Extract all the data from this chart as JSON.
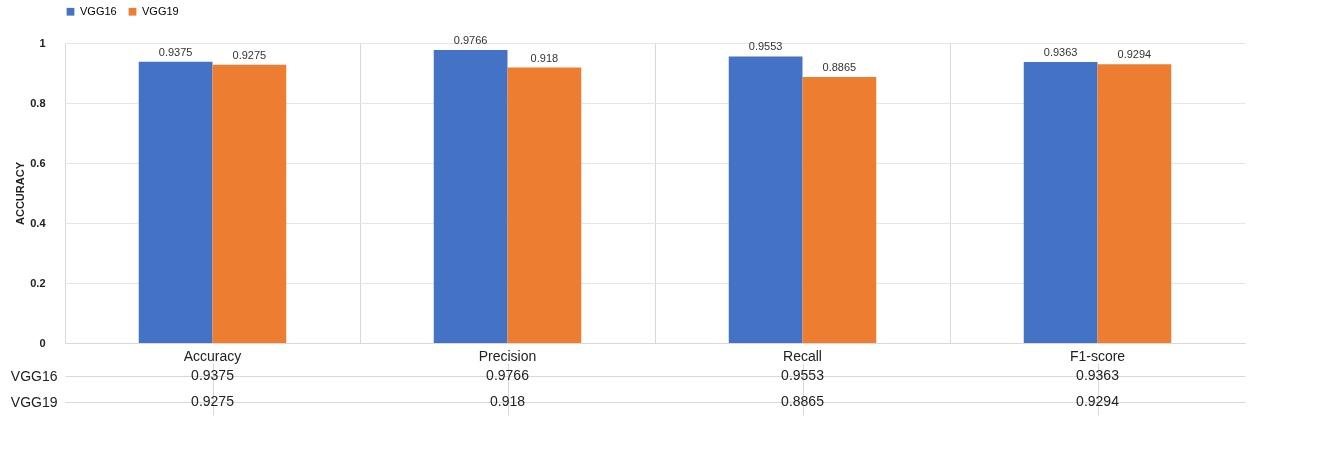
{
  "chart_data": {
    "type": "bar",
    "ylabel": "ACCURACY",
    "categories": [
      "Accuracy",
      "Precision",
      "Recall",
      "F1-score"
    ],
    "series": [
      {
        "name": "VGG16",
        "color": "#4472c4",
        "values": [
          0.9375,
          0.9766,
          0.9553,
          0.9363
        ],
        "value_labels": [
          "0.9375",
          "0.9766",
          "0.9553",
          "0.9363"
        ]
      },
      {
        "name": "VGG19",
        "color": "#ed7d31",
        "values": [
          0.9275,
          0.918,
          0.8865,
          0.9294
        ],
        "value_labels": [
          "0.9275",
          "0.918",
          "0.8865",
          "0.9294"
        ]
      }
    ],
    "ylim": [
      0,
      1
    ],
    "yticks": [
      {
        "value": 0,
        "label": "0"
      },
      0.2,
      0.4,
      0.6,
      0.8,
      {
        "value": 1,
        "label": "1"
      }
    ],
    "grid": "y",
    "legend": "top",
    "annotations": [
      "0.9375",
      "0.9766",
      "0.9553",
      "0.9363",
      "0.9275",
      "0.918",
      "0.8865",
      "0.9294"
    ]
  }
}
